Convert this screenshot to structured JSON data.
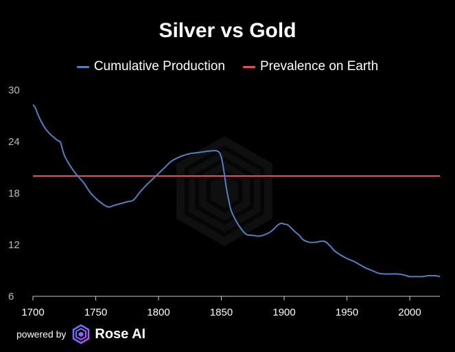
{
  "chart_data": {
    "type": "line",
    "title": "Silver vs Gold",
    "xlabel": "",
    "ylabel": "",
    "xlim": [
      1700,
      2024
    ],
    "ylim": [
      6,
      30
    ],
    "x_ticks": [
      1700,
      1750,
      1800,
      1850,
      1900,
      1950,
      2000
    ],
    "y_ticks": [
      6,
      12,
      18,
      24,
      30
    ],
    "grid": false,
    "legend": "top-center",
    "series": [
      {
        "name": "Cumulative Production",
        "color": "#4f81c7",
        "points": [
          [
            1700,
            28.3
          ],
          [
            1702,
            27.9
          ],
          [
            1705,
            26.8
          ],
          [
            1710,
            25.5
          ],
          [
            1715,
            24.7
          ],
          [
            1720,
            24.1
          ],
          [
            1722,
            23.9
          ],
          [
            1725,
            22.4
          ],
          [
            1730,
            21.1
          ],
          [
            1735,
            20.1
          ],
          [
            1740,
            19.3
          ],
          [
            1745,
            18.2
          ],
          [
            1750,
            17.4
          ],
          [
            1755,
            16.8
          ],
          [
            1760,
            16.4
          ],
          [
            1765,
            16.6
          ],
          [
            1770,
            16.8
          ],
          [
            1775,
            17.0
          ],
          [
            1780,
            17.2
          ],
          [
            1785,
            18.1
          ],
          [
            1790,
            18.9
          ],
          [
            1795,
            19.6
          ],
          [
            1800,
            20.3
          ],
          [
            1805,
            21.0
          ],
          [
            1810,
            21.7
          ],
          [
            1815,
            22.1
          ],
          [
            1820,
            22.4
          ],
          [
            1825,
            22.6
          ],
          [
            1830,
            22.7
          ],
          [
            1835,
            22.8
          ],
          [
            1840,
            22.9
          ],
          [
            1845,
            22.95
          ],
          [
            1848,
            22.8
          ],
          [
            1850,
            22.2
          ],
          [
            1852,
            20.6
          ],
          [
            1854,
            18.6
          ],
          [
            1856,
            17.1
          ],
          [
            1858,
            15.9
          ],
          [
            1862,
            14.7
          ],
          [
            1866,
            13.8
          ],
          [
            1870,
            13.2
          ],
          [
            1875,
            13.1
          ],
          [
            1880,
            13.0
          ],
          [
            1885,
            13.2
          ],
          [
            1890,
            13.6
          ],
          [
            1895,
            14.3
          ],
          [
            1898,
            14.5
          ],
          [
            1900,
            14.4
          ],
          [
            1903,
            14.3
          ],
          [
            1908,
            13.6
          ],
          [
            1912,
            13.1
          ],
          [
            1915,
            12.6
          ],
          [
            1920,
            12.3
          ],
          [
            1925,
            12.3
          ],
          [
            1932,
            12.4
          ],
          [
            1937,
            11.8
          ],
          [
            1940,
            11.3
          ],
          [
            1945,
            10.8
          ],
          [
            1950,
            10.4
          ],
          [
            1955,
            10.1
          ],
          [
            1960,
            9.7
          ],
          [
            1965,
            9.3
          ],
          [
            1970,
            9.0
          ],
          [
            1975,
            8.7
          ],
          [
            1980,
            8.6
          ],
          [
            1985,
            8.6
          ],
          [
            1990,
            8.6
          ],
          [
            1995,
            8.5
          ],
          [
            2000,
            8.3
          ],
          [
            2005,
            8.3
          ],
          [
            2010,
            8.3
          ],
          [
            2015,
            8.4
          ],
          [
            2020,
            8.4
          ],
          [
            2024,
            8.3
          ]
        ]
      },
      {
        "name": "Prevalence on Earth",
        "color": "#e0505f",
        "points": [
          [
            1700,
            20
          ],
          [
            2024,
            20
          ]
        ]
      }
    ]
  },
  "footer": {
    "powered_by": "powered by",
    "brand": "Rose AI"
  }
}
